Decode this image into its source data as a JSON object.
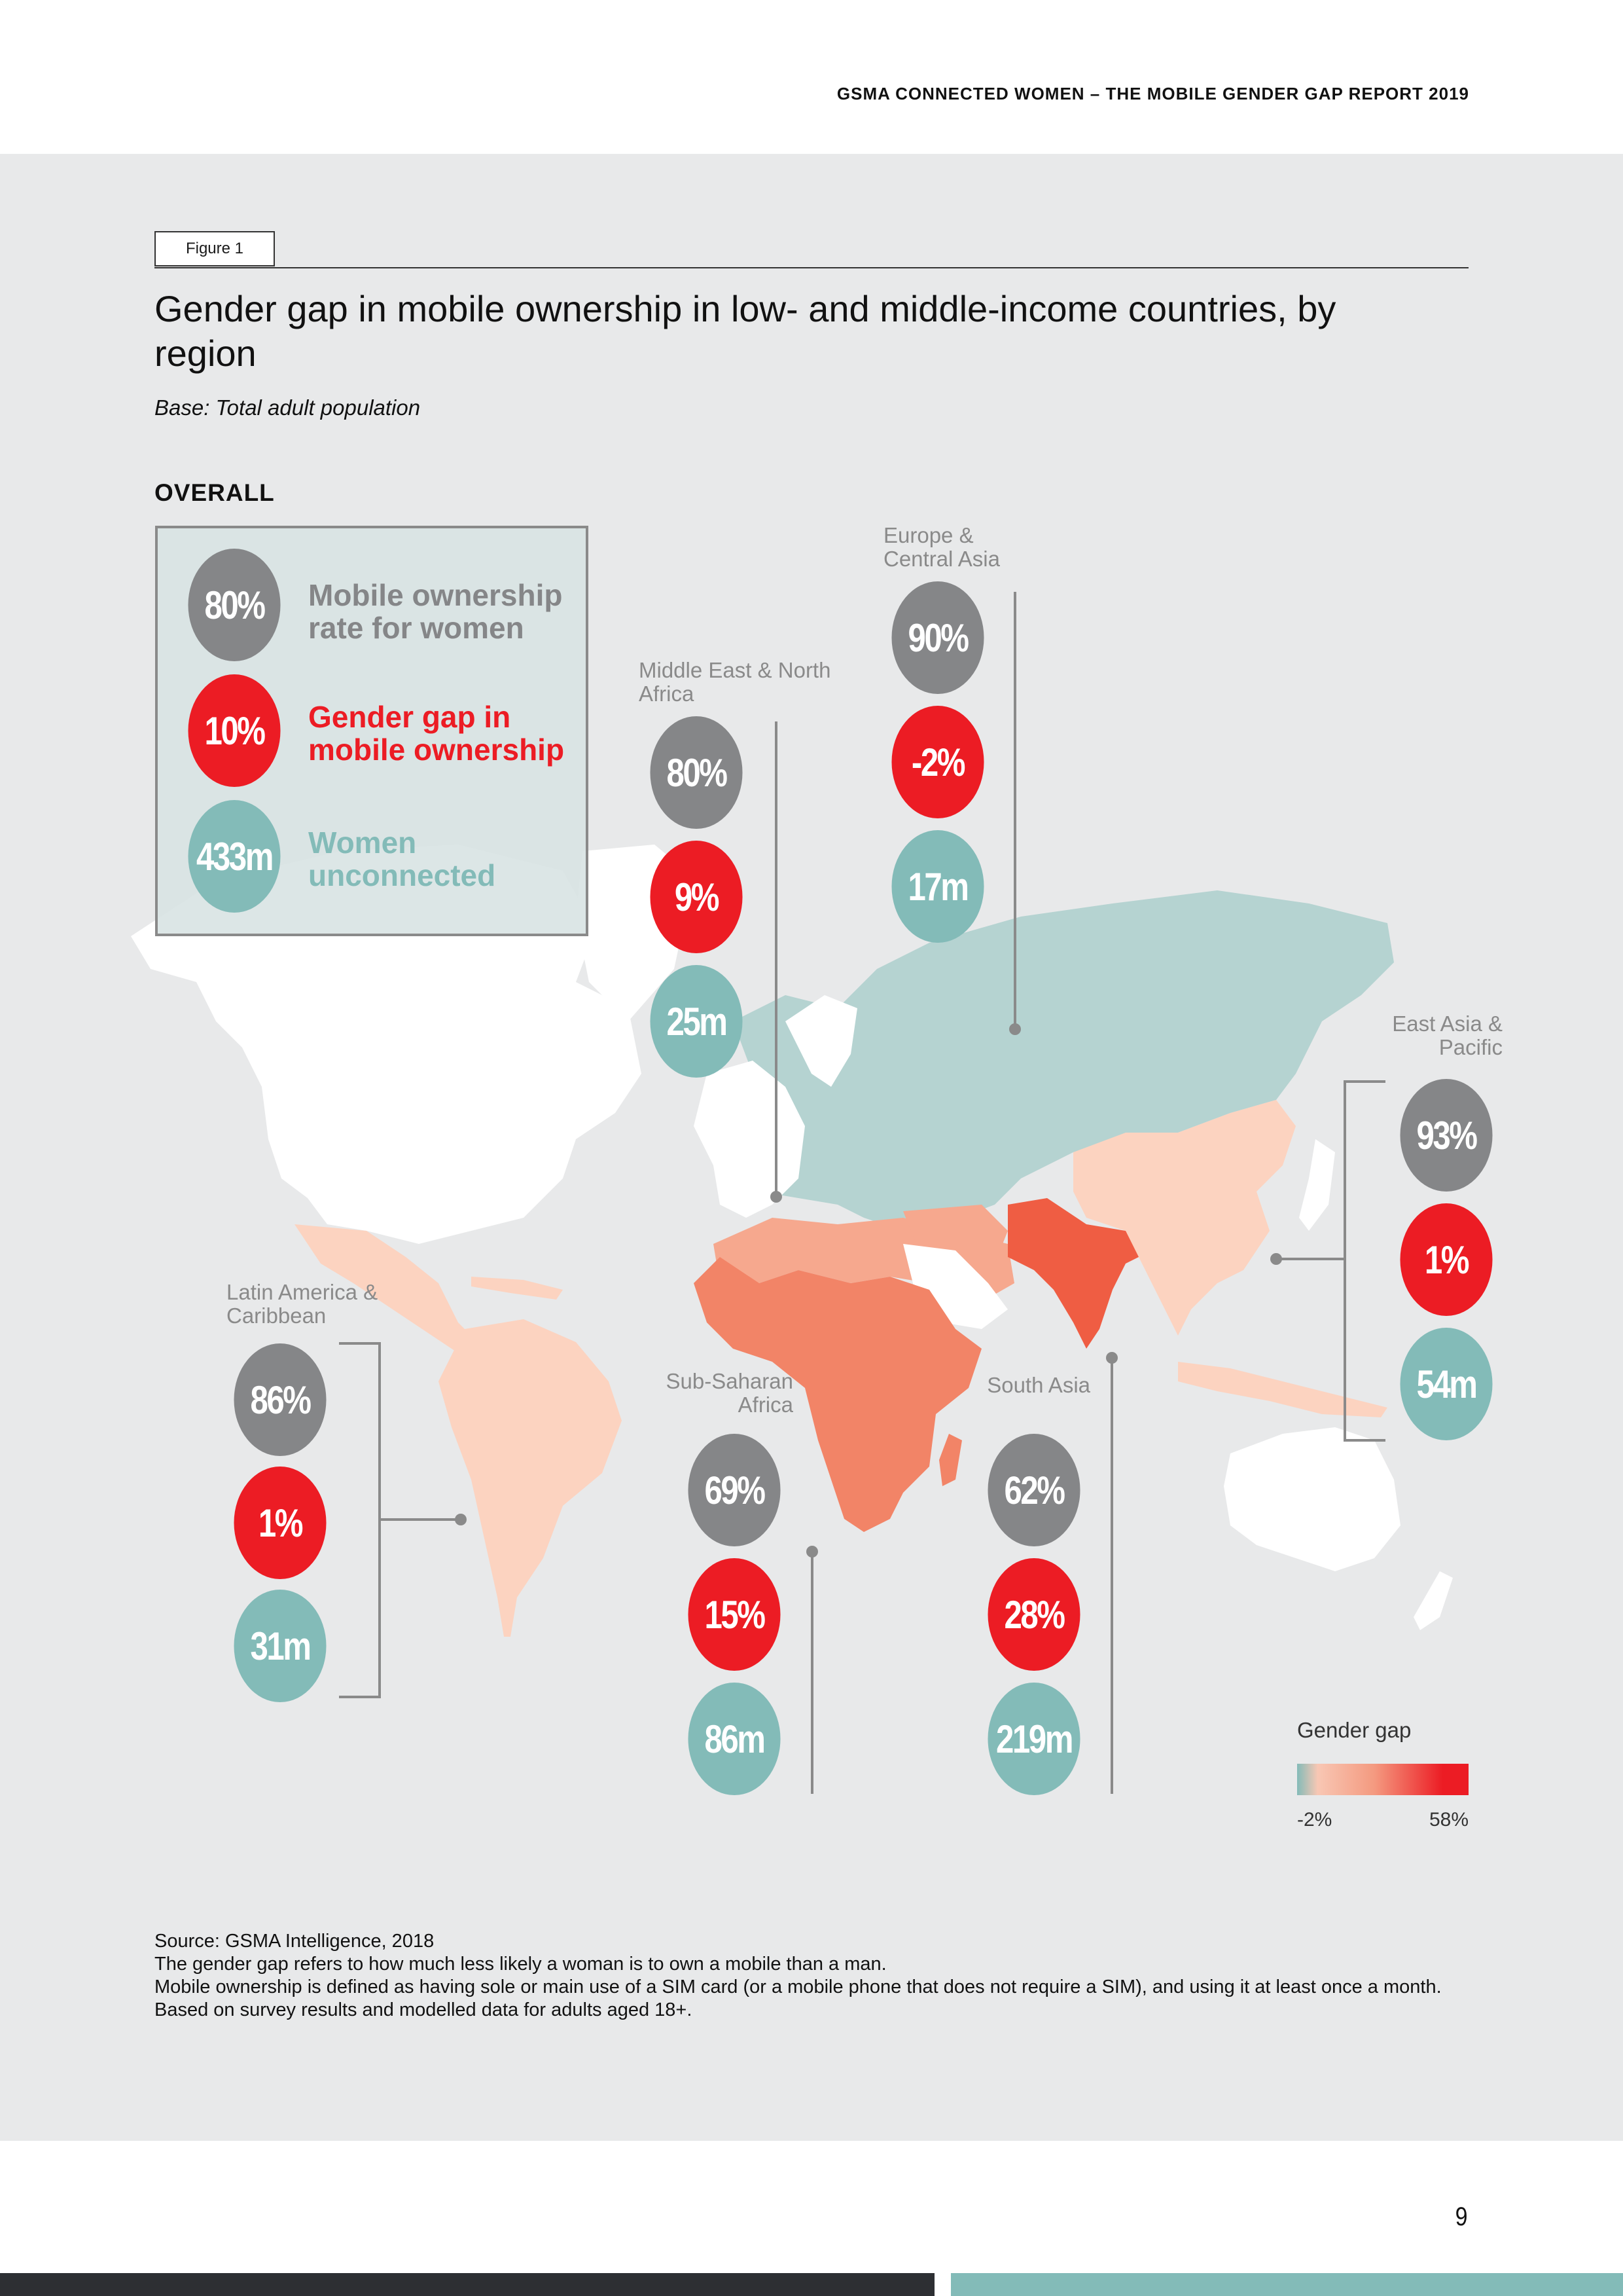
{
  "header": {
    "report_title": "GSMA CONNECTED WOMEN – THE MOBILE GENDER GAP REPORT 2019"
  },
  "figure": {
    "tag": "Figure 1",
    "title": "Gender gap in mobile ownership in low- and middle-income countries, by region",
    "base": "Base: Total adult population"
  },
  "overall": {
    "heading": "OVERALL",
    "ownership_value": "80%",
    "ownership_label": "Mobile ownership rate for women",
    "gap_value": "10%",
    "gap_label": "Gender gap in mobile ownership",
    "unconnected_value": "433m",
    "unconnected_label": "Women unconnected"
  },
  "regions": {
    "europe_central_asia": {
      "name": "Europe & Central Asia",
      "ownership": "90%",
      "gap": "-2%",
      "unconnected": "17m"
    },
    "middle_east_north_africa": {
      "name": "Middle East & North Africa",
      "ownership": "80%",
      "gap": "9%",
      "unconnected": "25m"
    },
    "east_asia_pacific": {
      "name": "East Asia & Pacific",
      "ownership": "93%",
      "gap": "1%",
      "unconnected": "54m"
    },
    "latin_america_caribbean": {
      "name": "Latin America & Caribbean",
      "ownership": "86%",
      "gap": "1%",
      "unconnected": "31m"
    },
    "sub_saharan_africa": {
      "name": "Sub-Saharan Africa",
      "ownership": "69%",
      "gap": "15%",
      "unconnected": "86m"
    },
    "south_asia": {
      "name": "South Asia",
      "ownership": "62%",
      "gap": "28%",
      "unconnected": "219m"
    }
  },
  "colors": {
    "ownership": "#858688",
    "gap": "#ec1c24",
    "unconnected": "#83bbb8",
    "map_not_covered": "#ffffff",
    "europe_central_asia_fill": "#b5d3d1",
    "latin_america_fill": "#fcd3c0",
    "east_asia_fill": "#fcd3c0",
    "mena_fill": "#f6a88e",
    "sub_saharan_fill": "#f28467",
    "south_asia_fill": "#ef5d43"
  },
  "scale": {
    "title": "Gender gap",
    "min_label": "-2%",
    "max_label": "58%"
  },
  "notes": {
    "source": "Source: GSMA Intelligence, 2018",
    "line1": "The gender gap refers to how much less likely a woman is to own a mobile than a man.",
    "line2": "Mobile ownership is defined as having sole or main use of a SIM card (or a mobile phone that does not require a SIM), and using it at least once a month.",
    "line3": "Based on survey results and modelled data for adults aged 18+."
  },
  "page": {
    "number": "9"
  }
}
